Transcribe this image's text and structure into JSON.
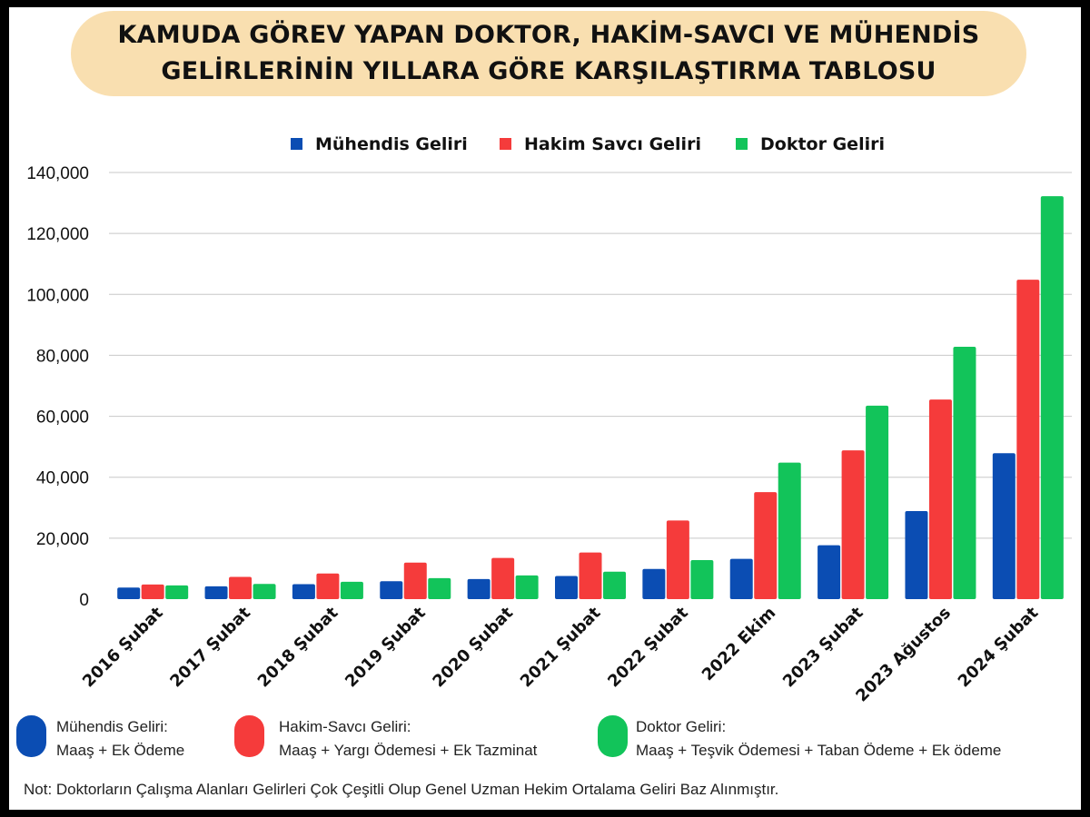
{
  "title": {
    "line1": "KAMUDA GÖREV YAPAN DOKTOR, HAKİM-SAVCI VE MÜHENDİS",
    "line2": "GELİRLERİNİN YILLARA GÖRE KARŞILAŞTIRMA TABLOSU"
  },
  "colors": {
    "muhendis": "#0b4db3",
    "hakim": "#f53b3b",
    "doktor": "#12c45a",
    "grid": "#c8c8c8",
    "title_bg": "#f9dfb0"
  },
  "chart_data": {
    "type": "bar",
    "categories": [
      "2016 Şubat",
      "2017 Şubat",
      "2018 Şubat",
      "2019 Şubat",
      "2020 Şubat",
      "2021 Şubat",
      "2022 Şubat",
      "2022 Ekim",
      "2023 Şubat",
      "2023 Ağustos",
      "2024 Şubat"
    ],
    "series": [
      {
        "name": "Mühendis Geliri",
        "color": "#0b4db3",
        "values": [
          3800,
          4200,
          4900,
          5900,
          6600,
          7600,
          9900,
          13200,
          17700,
          28900,
          47900
        ]
      },
      {
        "name": "Hakim Savcı Geliri",
        "color": "#f53b3b",
        "values": [
          4800,
          7300,
          8400,
          12000,
          13500,
          15300,
          25800,
          35100,
          48800,
          65500,
          104800
        ]
      },
      {
        "name": "Doktor Geliri",
        "color": "#12c45a",
        "values": [
          4500,
          5000,
          5700,
          6900,
          7800,
          9000,
          12800,
          44800,
          63500,
          82800,
          132200
        ]
      }
    ],
    "ylim": [
      0,
      140000
    ],
    "yticks": [
      0,
      20000,
      40000,
      60000,
      80000,
      100000,
      120000,
      140000
    ],
    "ytick_labels": [
      "0",
      "20,000",
      "40,000",
      "60,000",
      "80,000",
      "100,000",
      "120,000",
      "140,000"
    ],
    "grid": true,
    "legend_position": "top-center"
  },
  "bottom_legend": [
    {
      "title": "Mühendis Geliri:",
      "detail": "Maaş  +  Ek Ödeme",
      "color": "#0b4db3"
    },
    {
      "title": "Hakim-Savcı Geliri:",
      "detail": "Maaş + Yargı Ödemesi + Ek Tazminat",
      "color": "#f53b3b"
    },
    {
      "title": "Doktor Geliri:",
      "detail": "Maaş + Teşvik Ödemesi + Taban Ödeme + Ek ödeme",
      "color": "#12c45a"
    }
  ],
  "note": "Not: Doktorların Çalışma Alanları Gelirleri Çok Çeşitli Olup Genel Uzman Hekim Ortalama Geliri Baz Alınmıştır."
}
